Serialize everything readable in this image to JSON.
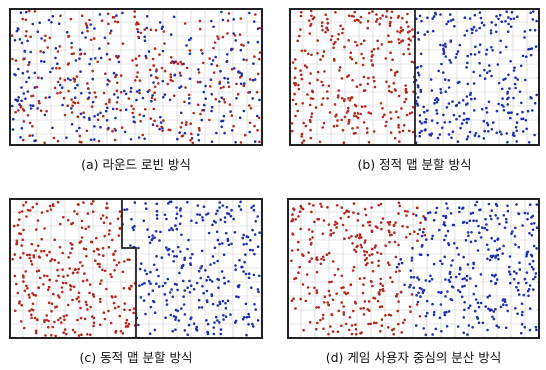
{
  "colors": {
    "red": "#b5281f",
    "blue": "#1f2fb0",
    "grid": "#cfcfcf",
    "border": "#222222"
  },
  "panels": [
    {
      "id": "a",
      "scheme": "mixed",
      "caption": "(a) 라운드 로빈 방식"
    },
    {
      "id": "b",
      "scheme": "static-split",
      "caption": "(b) 정적 맵 분할 방식"
    },
    {
      "id": "c",
      "scheme": "dynamic-split",
      "caption": "(c) 동적 맵 분할 방식"
    },
    {
      "id": "d",
      "scheme": "user-centered",
      "caption": "(d) 게임 사용자 중심의 분산 방식"
    }
  ]
}
